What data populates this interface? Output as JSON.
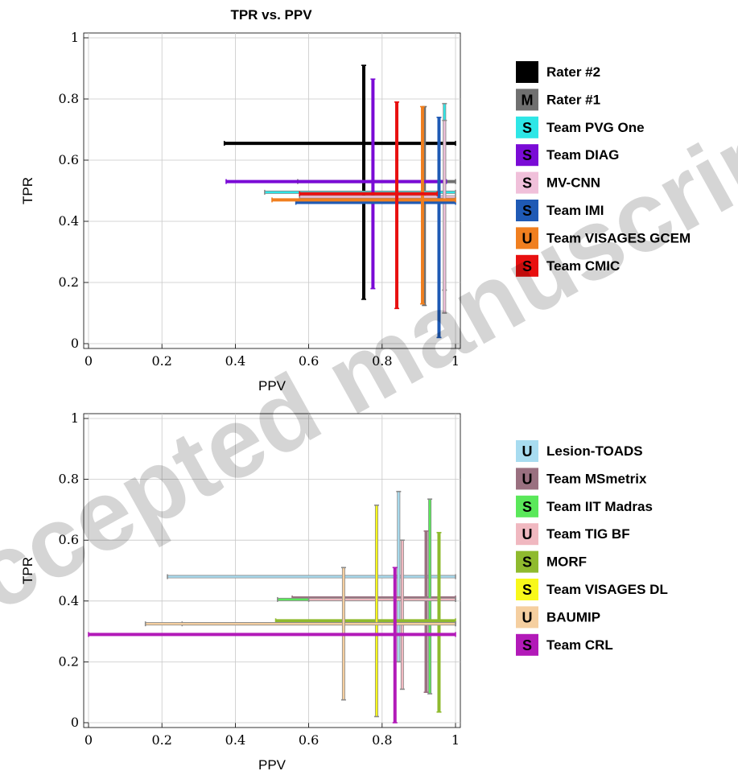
{
  "watermark": "Accepted manuscript",
  "chart_data": [
    {
      "type": "scatter",
      "title": "TPR vs. PPV",
      "xlabel": "PPV",
      "ylabel": "TPR",
      "xlim": [
        0,
        1
      ],
      "ylim": [
        0,
        1
      ],
      "xticks": [
        "0",
        "0.2",
        "0.4",
        "0.6",
        "0.8",
        "1"
      ],
      "yticks": [
        "0",
        "0.2",
        "0.4",
        "0.6",
        "0.8",
        "1"
      ],
      "grid": true,
      "legend_position": "right",
      "series": [
        {
          "name": "Rater #2",
          "marker": "",
          "color": "#000000",
          "ppv": 0.75,
          "ppv_range": [
            0.37,
            1.0
          ],
          "tpr": 0.655,
          "tpr_range": [
            0.145,
            0.91
          ]
        },
        {
          "name": "Rater #1",
          "marker": "M",
          "color": "#707070",
          "ppv": 0.915,
          "ppv_range": [
            0.57,
            1.0
          ],
          "tpr": 0.53,
          "tpr_range": [
            0.125,
            0.775
          ]
        },
        {
          "name": "Team PVG One",
          "marker": "S",
          "color": "#2ee6e6",
          "ppv": 0.97,
          "ppv_range": [
            0.48,
            1.0
          ],
          "tpr": 0.495,
          "tpr_range": [
            0.175,
            0.785
          ]
        },
        {
          "name": "Team DIAG",
          "marker": "S",
          "color": "#7a0bd6",
          "ppv": 0.775,
          "ppv_range": [
            0.375,
            0.975
          ],
          "tpr": 0.53,
          "tpr_range": [
            0.18,
            0.865
          ]
        },
        {
          "name": "MV-CNN",
          "marker": "S",
          "color": "#f0c0da",
          "ppv": 0.97,
          "ppv_range": [
            0.575,
            1.0
          ],
          "tpr": 0.48,
          "tpr_range": [
            0.1,
            0.73
          ]
        },
        {
          "name": "Team IMI",
          "marker": "S",
          "color": "#1f5ab5",
          "ppv": 0.955,
          "ppv_range": [
            0.565,
            1.0
          ],
          "tpr": 0.462,
          "tpr_range": [
            0.02,
            0.74
          ]
        },
        {
          "name": "Team VISAGES GCEM",
          "marker": "U",
          "color": "#f07f1f",
          "ppv": 0.91,
          "ppv_range": [
            0.5,
            1.0
          ],
          "tpr": 0.47,
          "tpr_range": [
            0.13,
            0.775
          ]
        },
        {
          "name": "Team CMIC",
          "marker": "S",
          "color": "#e81010",
          "ppv": 0.84,
          "ppv_range": [
            0.575,
            0.95
          ],
          "tpr": 0.49,
          "tpr_range": [
            0.115,
            0.79
          ]
        }
      ]
    },
    {
      "type": "scatter",
      "title": "",
      "xlabel": "PPV",
      "ylabel": "TPR",
      "xlim": [
        0,
        1
      ],
      "ylim": [
        0,
        1
      ],
      "xticks": [
        "0",
        "0.2",
        "0.4",
        "0.6",
        "0.8",
        "1"
      ],
      "yticks": [
        "0",
        "0.2",
        "0.4",
        "0.6",
        "0.8",
        "1"
      ],
      "grid": true,
      "legend_position": "right",
      "series": [
        {
          "name": "Lesion-TOADS",
          "marker": "U",
          "color": "#a8dcf0",
          "ppv": 0.845,
          "ppv_range": [
            0.215,
            1.0
          ],
          "tpr": 0.48,
          "tpr_range": [
            0.2,
            0.76
          ]
        },
        {
          "name": "Team MSmetrix",
          "marker": "U",
          "color": "#9a7080",
          "ppv": 0.92,
          "ppv_range": [
            0.555,
            1.0
          ],
          "tpr": 0.41,
          "tpr_range": [
            0.1,
            0.63
          ]
        },
        {
          "name": "Team IIT Madras",
          "marker": "S",
          "color": "#5ae85a",
          "ppv": 0.93,
          "ppv_range": [
            0.515,
            1.0
          ],
          "tpr": 0.405,
          "tpr_range": [
            0.095,
            0.735
          ]
        },
        {
          "name": "Team TIG BF",
          "marker": "U",
          "color": "#f0b8c0",
          "ppv": 0.855,
          "ppv_range": [
            0.6,
            1.0
          ],
          "tpr": 0.405,
          "tpr_range": [
            0.11,
            0.6
          ]
        },
        {
          "name": "MORF",
          "marker": "S",
          "color": "#8fba2e",
          "ppv": 0.955,
          "ppv_range": [
            0.51,
            1.0
          ],
          "tpr": 0.335,
          "tpr_range": [
            0.035,
            0.625
          ]
        },
        {
          "name": "Team VISAGES DL",
          "marker": "S",
          "color": "#f8f81a",
          "ppv": 0.785,
          "ppv_range": [
            0.255,
            1.0
          ],
          "tpr": 0.325,
          "tpr_range": [
            0.02,
            0.715
          ]
        },
        {
          "name": "BAUMIP",
          "marker": "U",
          "color": "#f5cfa0",
          "ppv": 0.695,
          "ppv_range": [
            0.155,
            1.0
          ],
          "tpr": 0.325,
          "tpr_range": [
            0.075,
            0.51
          ]
        },
        {
          "name": "Team CRL",
          "marker": "S",
          "color": "#b21ab8",
          "ppv": 0.835,
          "ppv_range": [
            0.0,
            1.0
          ],
          "tpr": 0.29,
          "tpr_range": [
            0.0,
            0.51
          ]
        }
      ]
    }
  ]
}
